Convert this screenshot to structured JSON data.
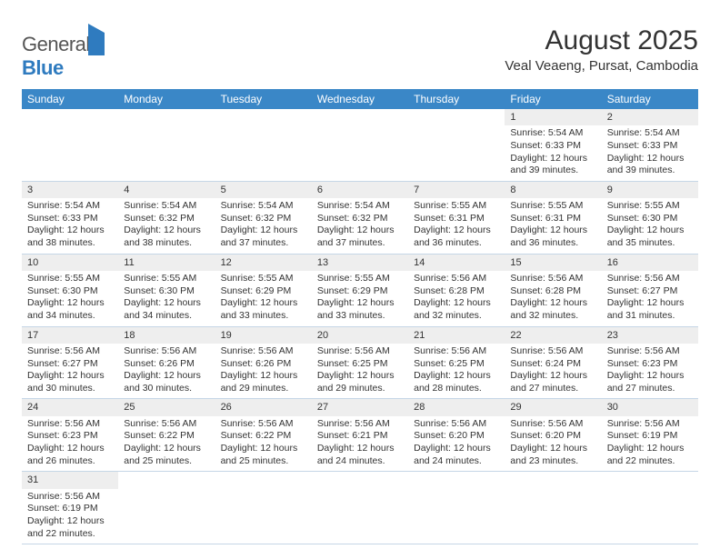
{
  "brand": {
    "textA": "General",
    "textB": "Blue"
  },
  "title": "August 2025",
  "location": "Veal Veaeng, Pursat, Cambodia",
  "columns": [
    "Sunday",
    "Monday",
    "Tuesday",
    "Wednesday",
    "Thursday",
    "Friday",
    "Saturday"
  ],
  "colors": {
    "header_bg": "#3a87c7",
    "header_text": "#ffffff",
    "daynum_bg": "#eeeeee",
    "rule": "#c5d6e6",
    "brand_blue": "#2f7bbf"
  },
  "weeks": [
    {
      "nums": [
        "",
        "",
        "",
        "",
        "",
        "1",
        "2"
      ],
      "cells": [
        null,
        null,
        null,
        null,
        null,
        {
          "sunrise": "Sunrise: 5:54 AM",
          "sunset": "Sunset: 6:33 PM",
          "day1": "Daylight: 12 hours",
          "day2": "and 39 minutes."
        },
        {
          "sunrise": "Sunrise: 5:54 AM",
          "sunset": "Sunset: 6:33 PM",
          "day1": "Daylight: 12 hours",
          "day2": "and 39 minutes."
        }
      ]
    },
    {
      "nums": [
        "3",
        "4",
        "5",
        "6",
        "7",
        "8",
        "9"
      ],
      "cells": [
        {
          "sunrise": "Sunrise: 5:54 AM",
          "sunset": "Sunset: 6:33 PM",
          "day1": "Daylight: 12 hours",
          "day2": "and 38 minutes."
        },
        {
          "sunrise": "Sunrise: 5:54 AM",
          "sunset": "Sunset: 6:32 PM",
          "day1": "Daylight: 12 hours",
          "day2": "and 38 minutes."
        },
        {
          "sunrise": "Sunrise: 5:54 AM",
          "sunset": "Sunset: 6:32 PM",
          "day1": "Daylight: 12 hours",
          "day2": "and 37 minutes."
        },
        {
          "sunrise": "Sunrise: 5:54 AM",
          "sunset": "Sunset: 6:32 PM",
          "day1": "Daylight: 12 hours",
          "day2": "and 37 minutes."
        },
        {
          "sunrise": "Sunrise: 5:55 AM",
          "sunset": "Sunset: 6:31 PM",
          "day1": "Daylight: 12 hours",
          "day2": "and 36 minutes."
        },
        {
          "sunrise": "Sunrise: 5:55 AM",
          "sunset": "Sunset: 6:31 PM",
          "day1": "Daylight: 12 hours",
          "day2": "and 36 minutes."
        },
        {
          "sunrise": "Sunrise: 5:55 AM",
          "sunset": "Sunset: 6:30 PM",
          "day1": "Daylight: 12 hours",
          "day2": "and 35 minutes."
        }
      ]
    },
    {
      "nums": [
        "10",
        "11",
        "12",
        "13",
        "14",
        "15",
        "16"
      ],
      "cells": [
        {
          "sunrise": "Sunrise: 5:55 AM",
          "sunset": "Sunset: 6:30 PM",
          "day1": "Daylight: 12 hours",
          "day2": "and 34 minutes."
        },
        {
          "sunrise": "Sunrise: 5:55 AM",
          "sunset": "Sunset: 6:30 PM",
          "day1": "Daylight: 12 hours",
          "day2": "and 34 minutes."
        },
        {
          "sunrise": "Sunrise: 5:55 AM",
          "sunset": "Sunset: 6:29 PM",
          "day1": "Daylight: 12 hours",
          "day2": "and 33 minutes."
        },
        {
          "sunrise": "Sunrise: 5:55 AM",
          "sunset": "Sunset: 6:29 PM",
          "day1": "Daylight: 12 hours",
          "day2": "and 33 minutes."
        },
        {
          "sunrise": "Sunrise: 5:56 AM",
          "sunset": "Sunset: 6:28 PM",
          "day1": "Daylight: 12 hours",
          "day2": "and 32 minutes."
        },
        {
          "sunrise": "Sunrise: 5:56 AM",
          "sunset": "Sunset: 6:28 PM",
          "day1": "Daylight: 12 hours",
          "day2": "and 32 minutes."
        },
        {
          "sunrise": "Sunrise: 5:56 AM",
          "sunset": "Sunset: 6:27 PM",
          "day1": "Daylight: 12 hours",
          "day2": "and 31 minutes."
        }
      ]
    },
    {
      "nums": [
        "17",
        "18",
        "19",
        "20",
        "21",
        "22",
        "23"
      ],
      "cells": [
        {
          "sunrise": "Sunrise: 5:56 AM",
          "sunset": "Sunset: 6:27 PM",
          "day1": "Daylight: 12 hours",
          "day2": "and 30 minutes."
        },
        {
          "sunrise": "Sunrise: 5:56 AM",
          "sunset": "Sunset: 6:26 PM",
          "day1": "Daylight: 12 hours",
          "day2": "and 30 minutes."
        },
        {
          "sunrise": "Sunrise: 5:56 AM",
          "sunset": "Sunset: 6:26 PM",
          "day1": "Daylight: 12 hours",
          "day2": "and 29 minutes."
        },
        {
          "sunrise": "Sunrise: 5:56 AM",
          "sunset": "Sunset: 6:25 PM",
          "day1": "Daylight: 12 hours",
          "day2": "and 29 minutes."
        },
        {
          "sunrise": "Sunrise: 5:56 AM",
          "sunset": "Sunset: 6:25 PM",
          "day1": "Daylight: 12 hours",
          "day2": "and 28 minutes."
        },
        {
          "sunrise": "Sunrise: 5:56 AM",
          "sunset": "Sunset: 6:24 PM",
          "day1": "Daylight: 12 hours",
          "day2": "and 27 minutes."
        },
        {
          "sunrise": "Sunrise: 5:56 AM",
          "sunset": "Sunset: 6:23 PM",
          "day1": "Daylight: 12 hours",
          "day2": "and 27 minutes."
        }
      ]
    },
    {
      "nums": [
        "24",
        "25",
        "26",
        "27",
        "28",
        "29",
        "30"
      ],
      "cells": [
        {
          "sunrise": "Sunrise: 5:56 AM",
          "sunset": "Sunset: 6:23 PM",
          "day1": "Daylight: 12 hours",
          "day2": "and 26 minutes."
        },
        {
          "sunrise": "Sunrise: 5:56 AM",
          "sunset": "Sunset: 6:22 PM",
          "day1": "Daylight: 12 hours",
          "day2": "and 25 minutes."
        },
        {
          "sunrise": "Sunrise: 5:56 AM",
          "sunset": "Sunset: 6:22 PM",
          "day1": "Daylight: 12 hours",
          "day2": "and 25 minutes."
        },
        {
          "sunrise": "Sunrise: 5:56 AM",
          "sunset": "Sunset: 6:21 PM",
          "day1": "Daylight: 12 hours",
          "day2": "and 24 minutes."
        },
        {
          "sunrise": "Sunrise: 5:56 AM",
          "sunset": "Sunset: 6:20 PM",
          "day1": "Daylight: 12 hours",
          "day2": "and 24 minutes."
        },
        {
          "sunrise": "Sunrise: 5:56 AM",
          "sunset": "Sunset: 6:20 PM",
          "day1": "Daylight: 12 hours",
          "day2": "and 23 minutes."
        },
        {
          "sunrise": "Sunrise: 5:56 AM",
          "sunset": "Sunset: 6:19 PM",
          "day1": "Daylight: 12 hours",
          "day2": "and 22 minutes."
        }
      ]
    },
    {
      "nums": [
        "31",
        "",
        "",
        "",
        "",
        "",
        ""
      ],
      "cells": [
        {
          "sunrise": "Sunrise: 5:56 AM",
          "sunset": "Sunset: 6:19 PM",
          "day1": "Daylight: 12 hours",
          "day2": "and 22 minutes."
        },
        null,
        null,
        null,
        null,
        null,
        null
      ]
    }
  ]
}
